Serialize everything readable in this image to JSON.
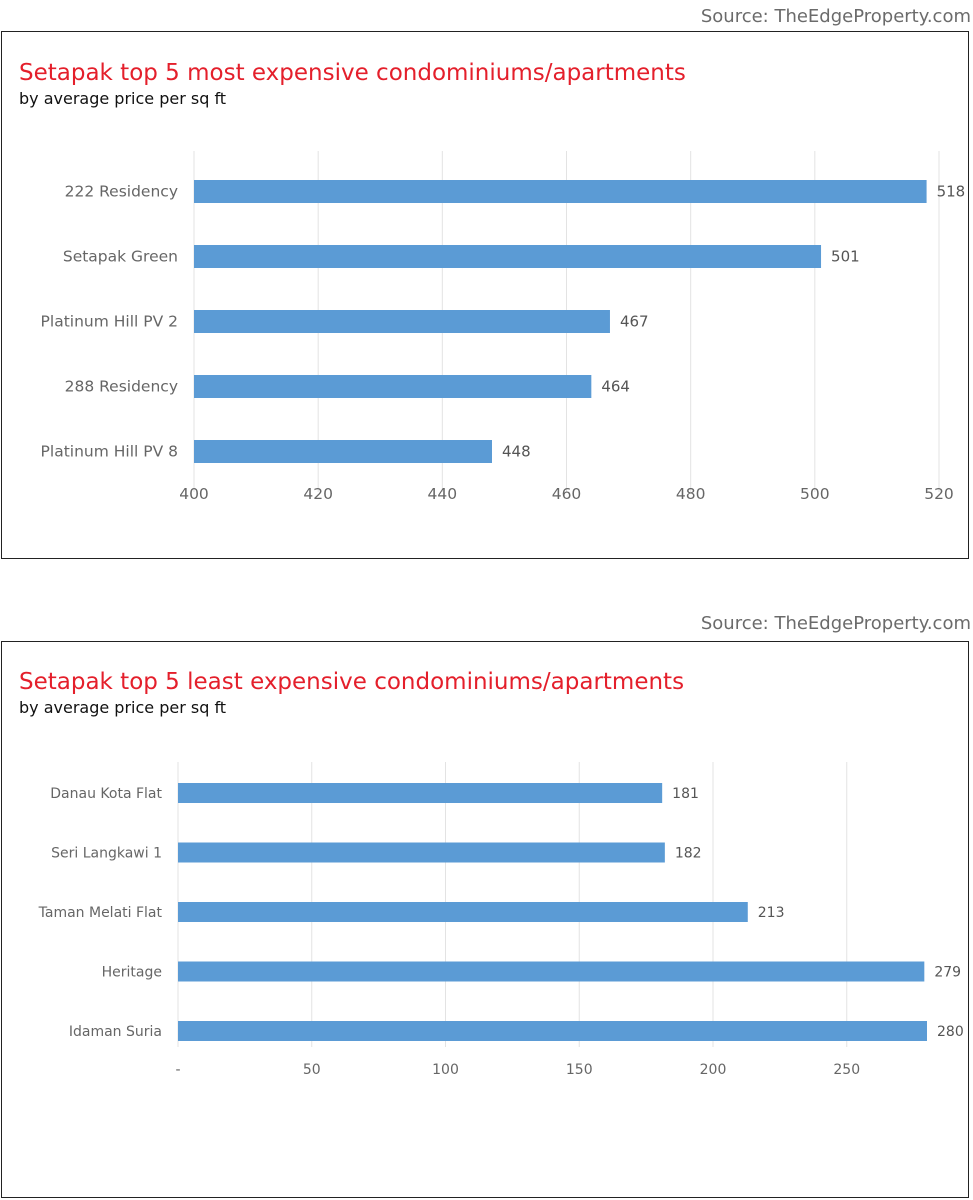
{
  "charts": [
    {
      "source": "Source: TheEdgeProperty.com",
      "title": "Setapak top 5 most expensive condominiums/apartments",
      "subtitle": "by average price per sq ft"
    },
    {
      "source": "Source: TheEdgeProperty.com",
      "title": "Setapak top 5 least expensive condominiums/apartments",
      "subtitle": "by average price per sq ft"
    }
  ],
  "colors": {
    "bar": "#5b9bd5",
    "title": "#e41f2b",
    "grid": "#e3e3e3",
    "label": "#666666"
  },
  "chart_data": [
    {
      "type": "bar",
      "orientation": "horizontal",
      "title": "Setapak top 5 most expensive condominiums/apartments",
      "subtitle": "by average price per sq ft",
      "categories": [
        "222 Residency",
        "Setapak Green",
        "Platinum Hill PV 2",
        "288 Residency",
        "Platinum Hill PV 8"
      ],
      "values": [
        518,
        501,
        467,
        464,
        448
      ],
      "xlim": [
        400,
        520
      ],
      "ticks": [
        400,
        420,
        440,
        460,
        480,
        500,
        520
      ],
      "tick_labels": [
        "400",
        "420",
        "440",
        "460",
        "480",
        "500",
        "520"
      ],
      "grid": true,
      "xlabel": "",
      "ylabel": ""
    },
    {
      "type": "bar",
      "orientation": "horizontal",
      "title": "Setapak top 5 least expensive condominiums/apartments",
      "subtitle": "by average price per sq ft",
      "categories": [
        "Danau Kota Flat",
        "Seri Langkawi 1",
        "Taman Melati Flat",
        "Heritage",
        "Idaman Suria"
      ],
      "values": [
        181,
        182,
        213,
        279,
        280
      ],
      "xlim": [
        0,
        280
      ],
      "ticks": [
        0,
        50,
        100,
        150,
        200,
        250
      ],
      "tick_labels": [
        "-",
        "50",
        "100",
        "150",
        "200",
        "250"
      ],
      "grid": true,
      "xlabel": "",
      "ylabel": ""
    }
  ]
}
